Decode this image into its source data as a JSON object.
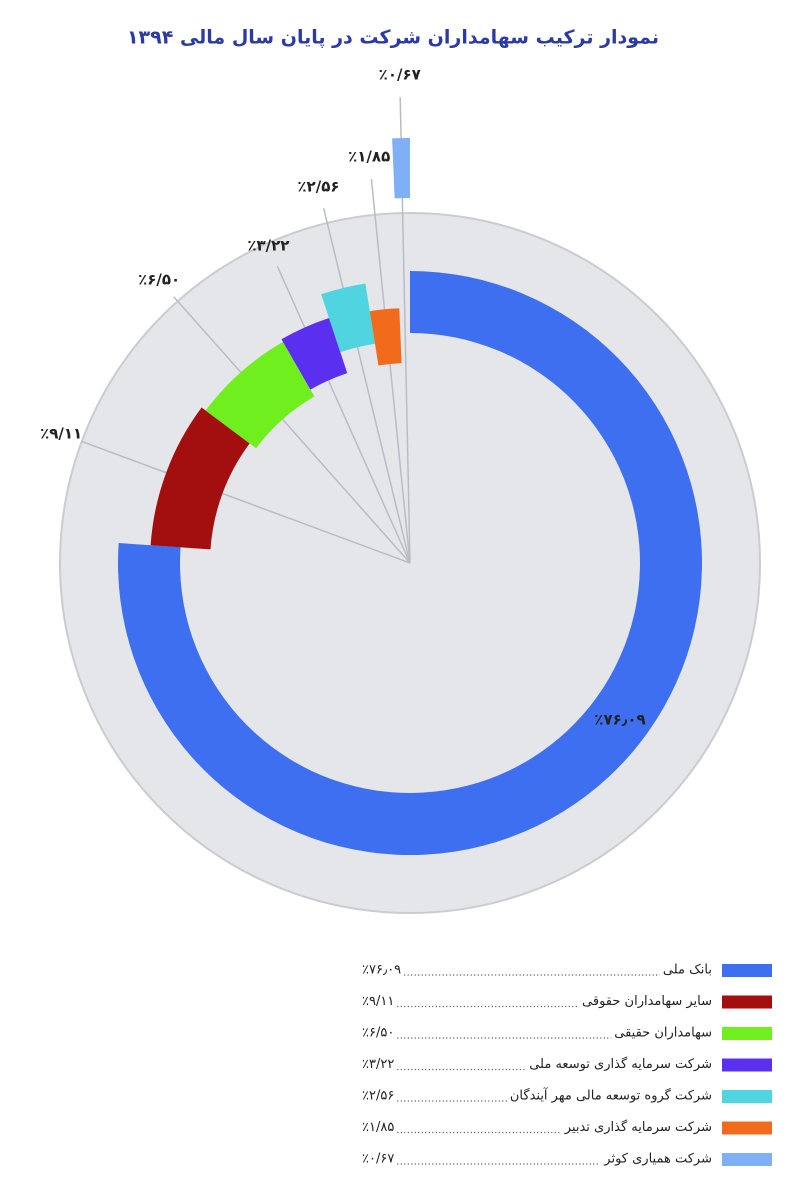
{
  "chart_data": {
    "type": "pie",
    "title": "نمودار ترکیب سهامداران شرکت در پایان سال مالی ۱۳۹۴",
    "categories": [
      "بانک ملی",
      "سایر سهامداران حقوقی",
      "سهامداران حقیقی",
      "شرکت سرمایه گذاری توسعه ملی",
      "شرکت گروه توسعه مالی مهر آیندگان",
      "شرکت سرمایه گذاری تدبیر",
      "شرکت همیاری کوثر"
    ],
    "values": [
      76.09,
      9.11,
      6.5,
      3.22,
      2.56,
      1.85,
      0.67
    ],
    "value_labels": [
      "٪۷۶٫۰۹",
      "٪۹/۱۱",
      "٪۶/۵۰",
      "٪۳/۲۲",
      "٪۲/۵۶",
      "٪۱/۸۵",
      "٪۰/۶۷"
    ],
    "colors": [
      "#3d6ff0",
      "#a30e0e",
      "#6ff01e",
      "#5a2ff0",
      "#4fd4e0",
      "#f26a1b",
      "#7fb0f5"
    ]
  }
}
